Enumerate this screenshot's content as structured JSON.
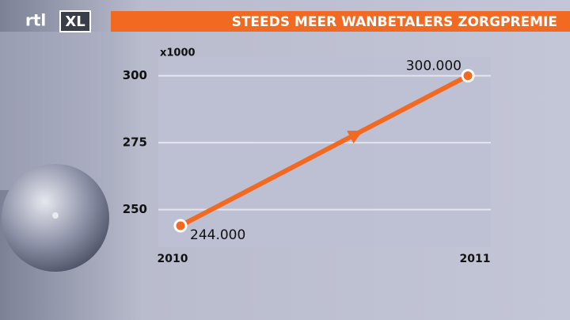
{
  "logo": {
    "left": "rtl",
    "right": "XL"
  },
  "chart_data": {
    "type": "line",
    "title": "STEEDS MEER WANBETALERS ZORGPREMIE",
    "y_unit": "x1000",
    "categories": [
      "2010",
      "2011"
    ],
    "values": [
      244,
      300
    ],
    "value_labels": [
      "244.000",
      "300.000"
    ],
    "color": "#f26a21",
    "ylim": [
      236,
      307
    ],
    "yticks": [
      250,
      275,
      300
    ],
    "grid": true
  }
}
